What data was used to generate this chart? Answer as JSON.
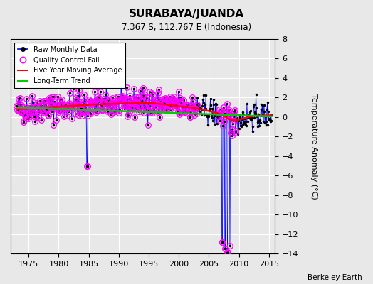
{
  "title": "SURABAYA/JUANDA",
  "subtitle": "7.367 S, 112.767 E (Indonesia)",
  "ylabel": "Temperature Anomaly (°C)",
  "credit": "Berkeley Earth",
  "xlim": [
    1972,
    2016
  ],
  "ylim_bottom": -14,
  "ylim_top": 8,
  "yticks": [
    8,
    6,
    4,
    2,
    0,
    -2,
    -4,
    -6,
    -8,
    -10,
    -12,
    -14
  ],
  "xticks": [
    1975,
    1980,
    1985,
    1990,
    1995,
    2000,
    2005,
    2010,
    2015
  ],
  "bg_color": "#e8e8e8",
  "raw_line_color": "#0000ff",
  "raw_dot_color": "#000000",
  "qc_fail_color": "#ff00ff",
  "moving_avg_color": "#ff0000",
  "trend_color": "#00cc00",
  "seed": 42
}
